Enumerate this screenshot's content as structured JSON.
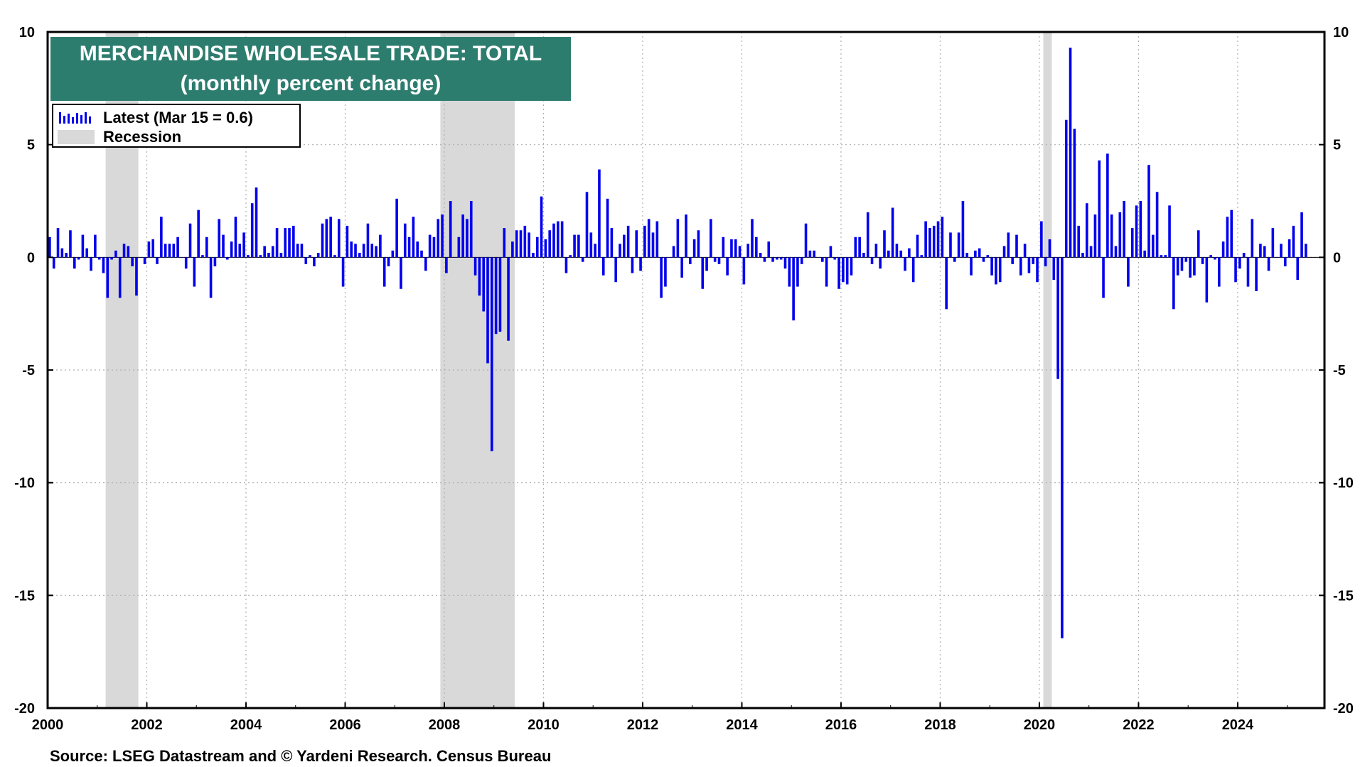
{
  "chart_data": {
    "type": "bar",
    "title": "MERCHANDISE WHOLESALE TRADE: TOTAL",
    "subtitle": "(monthly percent change)",
    "xlim": [
      2000,
      2025.75
    ],
    "ylim": [
      -20,
      10
    ],
    "y_ticks": [
      10,
      5,
      0,
      -5,
      -10,
      -15,
      -20
    ],
    "x_ticks": [
      2000,
      2002,
      2004,
      2006,
      2008,
      2010,
      2012,
      2014,
      2016,
      2018,
      2020,
      2022,
      2024
    ],
    "grid": true,
    "legend_placement": "top-left",
    "colors": {
      "bars": "#0000ee",
      "recession": "#d9d9d9",
      "title_bg": "#2d7d6f"
    },
    "legend": [
      {
        "label": "Latest (Mar 15 = 0.6)",
        "type": "bars"
      },
      {
        "label": "Recession",
        "type": "shade"
      }
    ],
    "recessions": [
      {
        "start": 2001.17,
        "end": 2001.83
      },
      {
        "start": 2007.92,
        "end": 2009.42
      },
      {
        "start": 2020.08,
        "end": 2020.25
      }
    ],
    "series": [
      {
        "start": "2000-01",
        "frequency": "monthly",
        "values": [
          0.9,
          -0.5,
          1.3,
          0.4,
          0.2,
          1.2,
          -0.5,
          -0.1,
          1.0,
          0.4,
          -0.6,
          1.0,
          -0.1,
          -0.7,
          -1.8,
          -0.1,
          0.3,
          -1.8,
          0.6,
          0.5,
          -0.4,
          -1.7,
          0.0,
          -0.3,
          0.7,
          0.8,
          -0.3,
          1.8,
          0.6,
          0.6,
          0.6,
          0.9,
          0.0,
          -0.5,
          1.5,
          -1.3,
          2.1,
          0.1,
          0.9,
          -1.8,
          -0.4,
          1.7,
          1.0,
          -0.1,
          0.7,
          1.8,
          0.6,
          1.1,
          0.1,
          2.4,
          3.1,
          0.1,
          0.5,
          0.2,
          0.5,
          1.3,
          0.2,
          1.3,
          1.3,
          1.4,
          0.6,
          0.6,
          -0.3,
          0.1,
          -0.4,
          0.2,
          1.5,
          1.7,
          1.8,
          0.1,
          1.7,
          -1.3,
          1.4,
          0.7,
          0.6,
          0.2,
          0.6,
          1.5,
          0.6,
          0.5,
          1.0,
          -1.3,
          -0.4,
          0.3,
          2.6,
          -1.4,
          1.5,
          0.9,
          1.8,
          0.7,
          0.3,
          -0.6,
          1.0,
          0.9,
          1.7,
          1.9,
          -0.7,
          2.5,
          0.0,
          0.9,
          1.9,
          1.7,
          2.5,
          -0.8,
          -1.7,
          -2.4,
          -4.7,
          -8.6,
          -3.4,
          -3.3,
          1.3,
          -3.7,
          0.7,
          1.2,
          1.2,
          1.4,
          1.1,
          0.2,
          0.9,
          2.7,
          0.8,
          1.2,
          1.5,
          1.6,
          1.6,
          -0.7,
          0.1,
          1.0,
          1.0,
          -0.2,
          2.9,
          1.1,
          0.6,
          3.9,
          -0.8,
          2.6,
          1.3,
          -1.1,
          0.6,
          1.0,
          1.4,
          -0.7,
          1.2,
          -0.6,
          1.4,
          1.7,
          1.1,
          1.6,
          -1.8,
          -1.3,
          0.0,
          0.5,
          1.7,
          -0.9,
          1.9,
          -0.3,
          0.8,
          1.2,
          -1.4,
          -0.6,
          1.7,
          -0.2,
          -0.3,
          0.9,
          -0.8,
          0.8,
          0.8,
          0.5,
          -1.2,
          0.6,
          1.7,
          0.9,
          0.2,
          -0.2,
          0.7,
          -0.2,
          -0.1,
          -0.1,
          -0.5,
          -1.3,
          -2.8,
          -1.3,
          -0.3,
          1.5,
          0.3,
          0.3,
          0.0,
          -0.2,
          -1.3,
          0.5,
          -0.1,
          -1.4,
          -1.1,
          -1.2,
          -0.8,
          0.9,
          0.9,
          0.2,
          2.0,
          -0.3,
          0.6,
          -0.5,
          1.2,
          0.3,
          2.2,
          0.6,
          0.3,
          -0.6,
          0.4,
          -1.1,
          1.0,
          0.1,
          1.6,
          1.3,
          1.4,
          1.6,
          1.8,
          -2.3,
          1.1,
          -0.2,
          1.1,
          2.5,
          0.2,
          -0.8,
          0.3,
          0.4,
          -0.2,
          0.1,
          -0.8,
          -1.2,
          -1.1,
          0.5,
          1.1,
          -0.3,
          1.0,
          -0.8,
          0.6,
          -0.7,
          -0.3,
          -1.1,
          1.6,
          -0.4,
          0.8,
          -1.0,
          -5.4,
          -16.9,
          6.1,
          9.3,
          5.7,
          1.4,
          0.2,
          2.4,
          0.5,
          1.9,
          4.3,
          -1.8,
          4.6,
          1.9,
          0.5,
          2.0,
          2.5,
          -1.3,
          1.3,
          2.3,
          2.5,
          0.3,
          4.1,
          1.0,
          2.9,
          0.1,
          0.1,
          2.3,
          -2.3,
          -0.8,
          -0.6,
          -0.2,
          -0.9,
          -0.8,
          1.2,
          -0.3,
          -2.0,
          0.1,
          -0.1,
          -1.3,
          0.7,
          1.8,
          2.1,
          -1.1,
          -0.5,
          0.2,
          -1.3,
          1.7,
          -1.5,
          0.6,
          0.5,
          -0.6,
          1.3,
          0.0,
          0.6,
          -0.4,
          0.8,
          1.4,
          -1.0,
          2.0,
          0.6
        ]
      }
    ],
    "source": "Source: LSEG Datastream and © Yardeni Research. Census Bureau"
  }
}
